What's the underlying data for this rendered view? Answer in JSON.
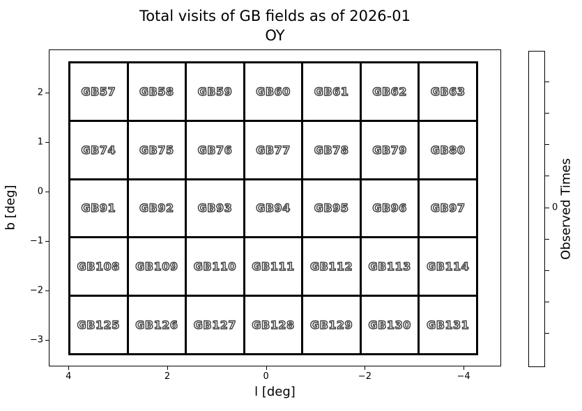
{
  "title": {
    "line1": "Total visits of GB fields as of 2026-01",
    "line2": "OY"
  },
  "axes": {
    "xlabel": "l [deg]",
    "ylabel": "b [deg]",
    "xtick_labels": [
      "4",
      "2",
      "0",
      "−2",
      "−4"
    ],
    "ytick_labels": [
      "2",
      "1",
      "0",
      "−1",
      "−2",
      "−3"
    ]
  },
  "colorbar": {
    "label": "Observed Times",
    "tick_count": 9,
    "labeled_tick_index": 4,
    "labeled_tick_label": "0",
    "fill_color": "#ffffff"
  },
  "colors": {
    "cell_fill": "#ffffff",
    "grid_line": "#000000",
    "cell_text_fill": "#ffffff",
    "cell_text_outline": "#3d3d3d"
  },
  "chart_data": {
    "type": "heatmap",
    "title": "Total visits of GB fields as of 2026-01",
    "subtitle": "OY",
    "xlabel": "l [deg]",
    "ylabel": "b [deg]",
    "colorbar_label": "Observed Times",
    "colorbar_visible_tick_labels": [
      "0"
    ],
    "xticks": [
      4,
      2,
      0,
      -2,
      -4
    ],
    "yticks": [
      2,
      1,
      0,
      -1,
      -2,
      -3
    ],
    "x_axis_reversed": true,
    "grid_rows": 5,
    "grid_cols": 7,
    "rows": [
      [
        "GB57",
        "GB58",
        "GB59",
        "GB60",
        "GB61",
        "GB62",
        "GB63"
      ],
      [
        "GB74",
        "GB75",
        "GB76",
        "GB77",
        "GB78",
        "GB79",
        "GB80"
      ],
      [
        "GB91",
        "GB92",
        "GB93",
        "GB94",
        "GB95",
        "GB96",
        "GB97"
      ],
      [
        "GB108",
        "GB109",
        "GB110",
        "GB111",
        "GB112",
        "GB113",
        "GB114"
      ],
      [
        "GB125",
        "GB126",
        "GB127",
        "GB128",
        "GB129",
        "GB130",
        "GB131"
      ]
    ],
    "cell_fill_uniform": "#ffffff",
    "legend_position": "right-colorbar"
  }
}
